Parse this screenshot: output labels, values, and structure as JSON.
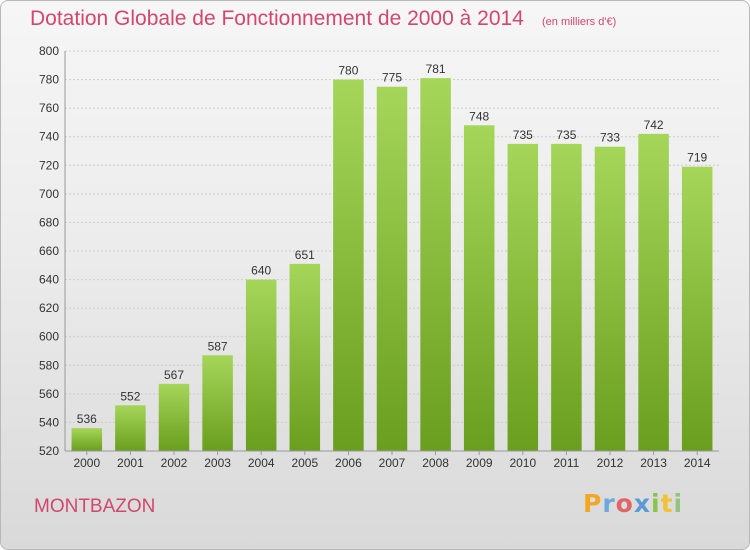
{
  "title": "Dotation Globale de Fonctionnement de 2000 à 2014",
  "subtitle": "(en milliers d'€)",
  "city": "MONTBAZON",
  "logo": {
    "letters": [
      "P",
      "r",
      "o",
      "x",
      "i",
      "t",
      "i"
    ],
    "colors": [
      "#f5a623",
      "#6fa8dc",
      "#e06666",
      "#5b9bd5",
      "#8bc34a",
      "#f1c232",
      "#93c47d"
    ]
  },
  "colors": {
    "title": "#d2476d",
    "bar_light": "#a5d65a",
    "bar_dark": "#6a9e1e",
    "grid": "#cccccc"
  },
  "chart_data": {
    "type": "bar",
    "categories": [
      "2000",
      "2001",
      "2002",
      "2003",
      "2004",
      "2005",
      "2006",
      "2007",
      "2008",
      "2009",
      "2010",
      "2011",
      "2012",
      "2013",
      "2014"
    ],
    "values": [
      536,
      552,
      567,
      587,
      640,
      651,
      780,
      775,
      781,
      748,
      735,
      735,
      733,
      742,
      719
    ],
    "ylim": [
      520,
      800
    ],
    "yticks": [
      520,
      540,
      560,
      580,
      600,
      620,
      640,
      660,
      680,
      700,
      720,
      740,
      760,
      780,
      800
    ],
    "grid": true,
    "data_labels": true
  }
}
